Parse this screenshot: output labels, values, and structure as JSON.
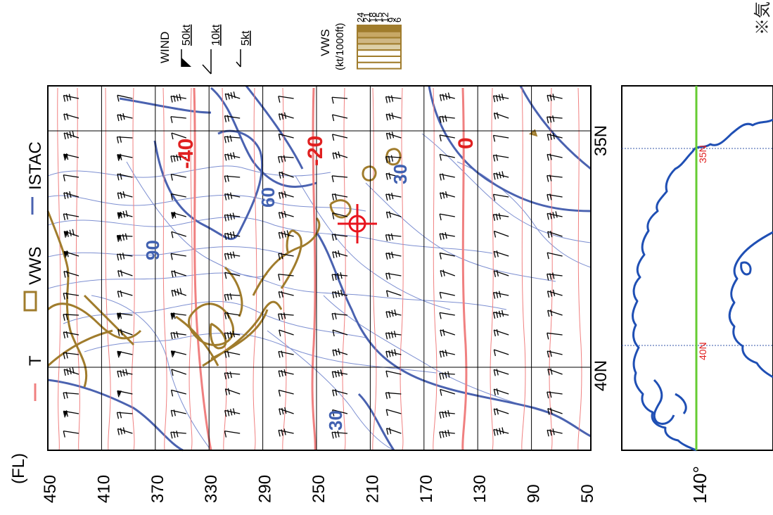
{
  "legend": {
    "t_label": "T",
    "vws_label": "VWS",
    "istac_label": "ISTAC",
    "wind_title": "WIND",
    "wind_items": [
      "50kt",
      "10kt",
      "5kt"
    ],
    "vws_scale_title": "VWS",
    "vws_scale_unit": "(kt/1000ft)",
    "vws_scale_values": [
      "24",
      "21",
      "18",
      "15",
      "12",
      "9",
      "6"
    ]
  },
  "note_fragment": "※気",
  "flight_levels": {
    "unit": "(FL)",
    "values": [
      "450",
      "410",
      "370",
      "330",
      "290",
      "250",
      "210",
      "170",
      "130",
      "90",
      "50"
    ]
  },
  "latitude_labels": [
    "35N",
    "40N"
  ],
  "temperature_labels": [
    "-40",
    "-20",
    "0"
  ],
  "istac_labels": [
    "90",
    "60",
    "30",
    "30"
  ],
  "inset_map": {
    "longitude_label": "140°",
    "lat_labels": [
      "35N",
      "40N"
    ]
  },
  "colors": {
    "temperature": "#f08080",
    "vws": "#a07c2c",
    "istac": "#4a62b0",
    "coast": "#1f4fb4",
    "meridian": "#66cc33",
    "marker": "#e8141e"
  }
}
